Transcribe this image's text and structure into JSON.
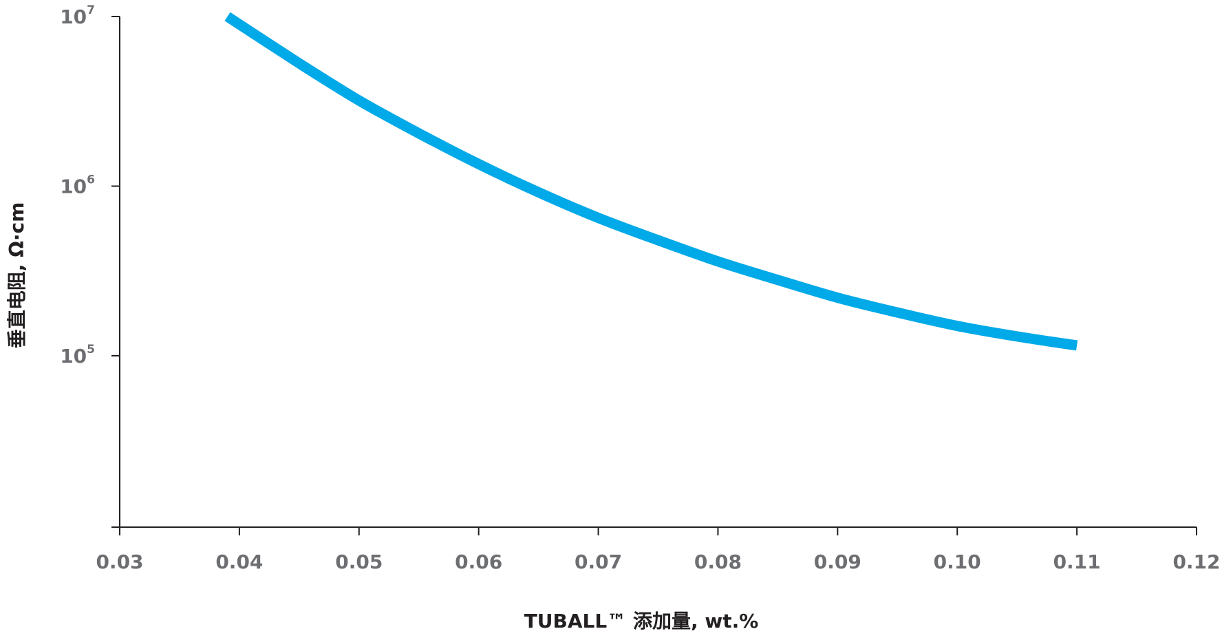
{
  "chart_data": {
    "type": "line",
    "xlabel": "TUBALL™ 添加量, wt.%",
    "ylabel": "垂直电阻, Ω·cm",
    "x_ticks": [
      "0.03",
      "0.04",
      "0.05",
      "0.06",
      "0.07",
      "0.08",
      "0.09",
      "0.10",
      "0.11",
      "0.12"
    ],
    "y_ticks": [
      {
        "value": 100000,
        "base": "10",
        "exp": "5"
      },
      {
        "value": 1000000,
        "base": "10",
        "exp": "6"
      },
      {
        "value": 10000000,
        "base": "10",
        "exp": "7"
      }
    ],
    "xlim": [
      0.03,
      0.12
    ],
    "ylim": [
      10000,
      10000000
    ],
    "yscale": "log",
    "grid": false,
    "series": [
      {
        "color": "#00a9e8",
        "x": [
          0.039,
          0.045,
          0.05,
          0.055,
          0.06,
          0.065,
          0.07,
          0.075,
          0.08,
          0.085,
          0.09,
          0.095,
          0.1,
          0.105,
          0.11
        ],
        "y": [
          10000000,
          5300000,
          3200000,
          2050000,
          1350000,
          920000,
          650000,
          480000,
          360000,
          280000,
          220000,
          180000,
          150000,
          130000,
          115000
        ]
      }
    ]
  }
}
